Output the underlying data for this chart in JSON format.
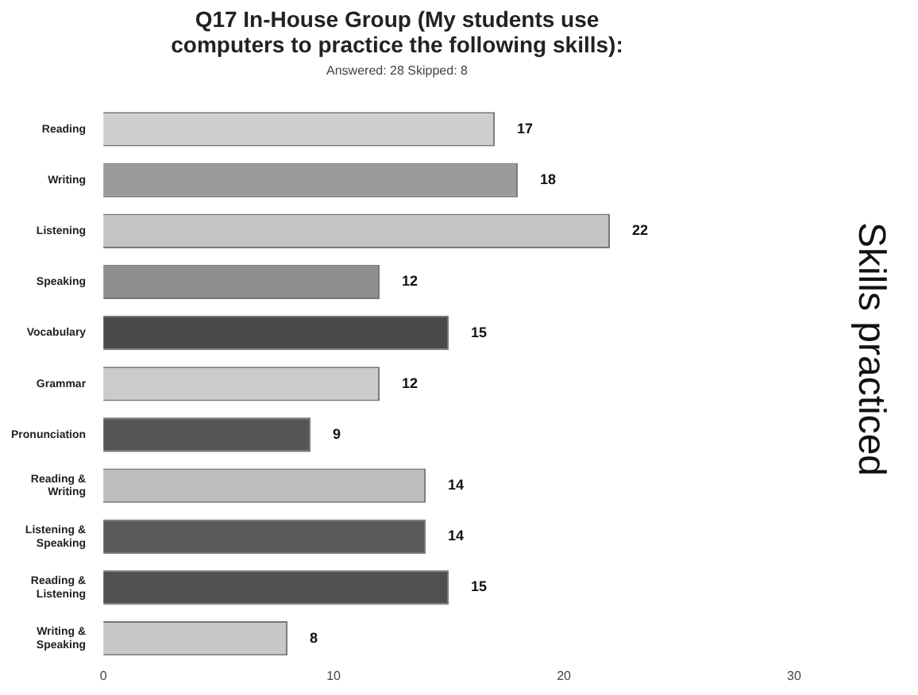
{
  "chart_data": {
    "type": "bar",
    "orientation": "horizontal",
    "title": "Q17 In-House Group (My students use\ncomputers to practice the following skills):",
    "subtitle": "Answered: 28    Skipped: 8",
    "categories": [
      "Reading",
      "Writing",
      "Listening",
      "Speaking",
      "Vocabulary",
      "Grammar",
      "Pronunciation",
      "Reading &\nWriting",
      "Listening &\nSpeaking",
      "Reading &\nListening",
      "Writing &\nSpeaking"
    ],
    "values": [
      17,
      18,
      22,
      12,
      15,
      12,
      9,
      14,
      14,
      15,
      8
    ],
    "colors": [
      "#cfcfcf",
      "#9a9a9a",
      "#c4c4c4",
      "#8e8e8e",
      "#4a4a4a",
      "#cbcbcb",
      "#555555",
      "#bdbdbd",
      "#5a5a5a",
      "#505050",
      "#c8c8c8"
    ],
    "xlim": [
      0,
      30
    ],
    "xticks": [
      0,
      10,
      20,
      30
    ],
    "grid": false,
    "data_labels": true,
    "annotations": [
      "Skills practiced"
    ]
  }
}
